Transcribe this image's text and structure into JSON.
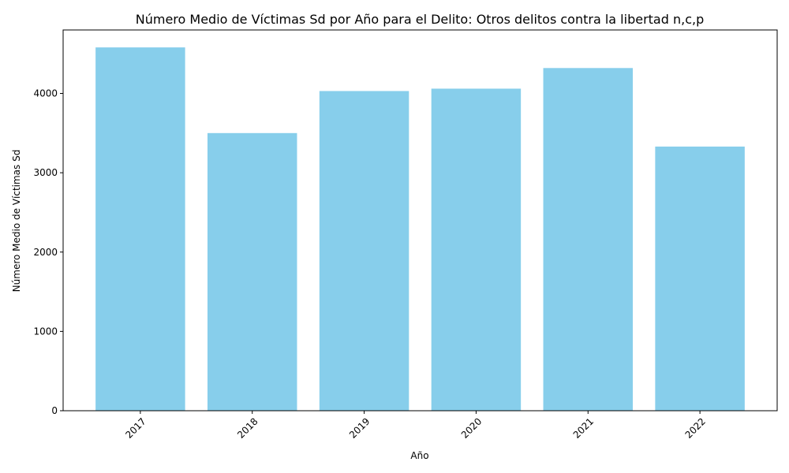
{
  "chart_data": {
    "type": "bar",
    "title": "Número Medio de Víctimas Sd por Año para el Delito: Otros delitos contra la libertad n,c,p",
    "xlabel": "Año",
    "ylabel": "Número Medio de Víctimas Sd",
    "categories": [
      "2017",
      "2018",
      "2019",
      "2020",
      "2021",
      "2022"
    ],
    "values": [
      4580,
      3500,
      4030,
      4060,
      4320,
      3330
    ],
    "ylim": [
      0,
      4800
    ],
    "yticks": [
      0,
      1000,
      2000,
      3000,
      4000
    ],
    "ytick_labels": [
      "0",
      "1000",
      "2000",
      "3000",
      "4000"
    ],
    "bar_color": "#87CEEB",
    "grid": false,
    "legend": "none"
  }
}
